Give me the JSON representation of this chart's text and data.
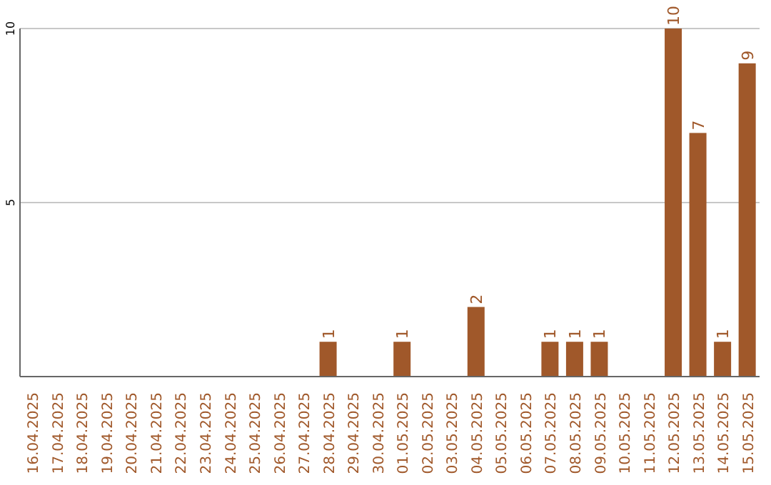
{
  "chart_data": {
    "type": "bar",
    "categories": [
      "16.04.2025",
      "17.04.2025",
      "18.04.2025",
      "19.04.2025",
      "20.04.2025",
      "21.04.2025",
      "22.04.2025",
      "23.04.2025",
      "24.04.2025",
      "25.04.2025",
      "26.04.2025",
      "27.04.2025",
      "28.04.2025",
      "29.04.2025",
      "30.04.2025",
      "01.05.2025",
      "02.05.2025",
      "03.05.2025",
      "04.05.2025",
      "05.05.2025",
      "06.05.2025",
      "07.05.2025",
      "08.05.2025",
      "09.05.2025",
      "10.05.2025",
      "11.05.2025",
      "12.05.2025",
      "13.05.2025",
      "14.05.2025",
      "15.05.2025"
    ],
    "values": [
      0,
      0,
      0,
      0,
      0,
      0,
      0,
      0,
      0,
      0,
      0,
      0,
      1,
      0,
      0,
      1,
      0,
      0,
      2,
      0,
      0,
      1,
      1,
      1,
      0,
      0,
      10,
      7,
      1,
      9
    ],
    "value_labels": [
      null,
      null,
      null,
      null,
      null,
      null,
      null,
      null,
      null,
      null,
      null,
      null,
      "1",
      null,
      null,
      "1",
      null,
      null,
      "2",
      null,
      null,
      "1",
      "1",
      "1",
      null,
      null,
      "10",
      "7",
      "1",
      "9"
    ],
    "color": "#a0582a",
    "ylim": [
      0,
      10
    ],
    "yticks": [
      5,
      10
    ],
    "grid": "y"
  }
}
